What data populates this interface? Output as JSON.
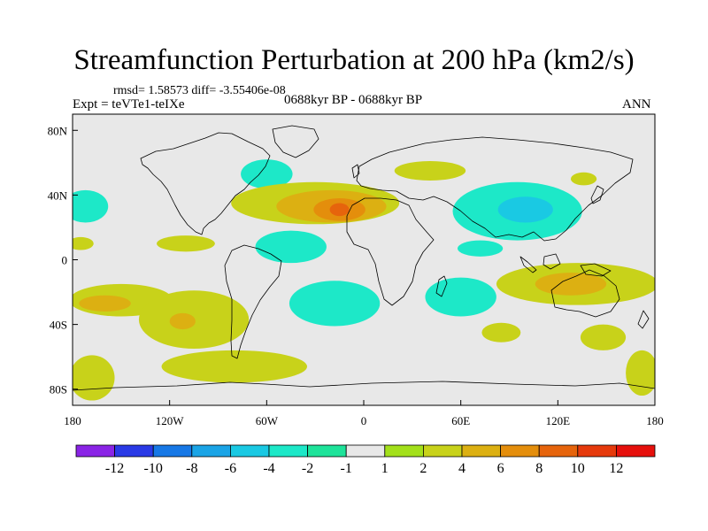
{
  "chart_data": {
    "type": "heatmap",
    "title": "Streamfunction Perturbation at 200 hPa (km2/s)",
    "stats": "rmsd= 1.58573  diff= -3.55406e-08",
    "experiment": "Expt = teVTe1-teIXe",
    "period": "0688kyr BP - 0688kyr BP",
    "season": "ANN",
    "x_range": [
      -180,
      180
    ],
    "y_range": [
      -90,
      90
    ],
    "x_ticks": [
      {
        "value": -180,
        "label": "180"
      },
      {
        "value": -120,
        "label": "120W"
      },
      {
        "value": -60,
        "label": "60W"
      },
      {
        "value": 0,
        "label": "0"
      },
      {
        "value": 60,
        "label": "60E"
      },
      {
        "value": 120,
        "label": "120E"
      },
      {
        "value": 180,
        "label": "180"
      }
    ],
    "y_ticks": [
      {
        "value": 80,
        "label": "80N"
      },
      {
        "value": 40,
        "label": "40N"
      },
      {
        "value": 0,
        "label": "0"
      },
      {
        "value": -40,
        "label": "40S"
      },
      {
        "value": -80,
        "label": "80S"
      }
    ],
    "colorbar": {
      "labels": [
        "-12",
        "-10",
        "-8",
        "-6",
        "-4",
        "-2",
        "-1",
        "1",
        "2",
        "4",
        "6",
        "8",
        "10",
        "12"
      ],
      "colors": [
        "#8a24e6",
        "#2a3ae6",
        "#1778e6",
        "#1aa4e6",
        "#1ac9e3",
        "#1de8c8",
        "#1ee39a",
        "#e8e8e8",
        "#a3e01a",
        "#c8d21a",
        "#dcb012",
        "#e48e0c",
        "#e6640c",
        "#e63a0c",
        "#e6100c"
      ]
    },
    "contour_regions": [
      {
        "level": 2,
        "lon": 41,
        "lat": 55,
        "rlon": 22,
        "rlat": 6
      },
      {
        "level": -2,
        "lon": -172,
        "lat": 33,
        "rlon": 14,
        "rlat": 10
      },
      {
        "level": -2,
        "lon": -60,
        "lat": 53,
        "rlon": 16,
        "rlat": 9
      },
      {
        "level": 2,
        "lon": -30,
        "lat": 35,
        "rlon": 52,
        "rlat": 13
      },
      {
        "level": 4,
        "lon": -20,
        "lat": 33,
        "rlon": 34,
        "rlat": 10
      },
      {
        "level": 6,
        "lon": -15,
        "lat": 31,
        "rlon": 16,
        "rlat": 7
      },
      {
        "level": 8,
        "lon": -15,
        "lat": 31,
        "rlon": 6,
        "rlat": 4
      },
      {
        "level": -2,
        "lon": 95,
        "lat": 30,
        "rlon": 40,
        "rlat": 18
      },
      {
        "level": -4,
        "lon": 100,
        "lat": 31,
        "rlon": 17,
        "rlat": 8
      },
      {
        "level": -2,
        "lon": -45,
        "lat": 8,
        "rlon": 22,
        "rlat": 10
      },
      {
        "level": -2,
        "lon": 72,
        "lat": 7,
        "rlon": 14,
        "rlat": 5
      },
      {
        "level": 2,
        "lon": 132,
        "lat": -15,
        "rlon": 50,
        "rlat": 13
      },
      {
        "level": 4,
        "lon": 128,
        "lat": -15,
        "rlon": 22,
        "rlat": 7
      },
      {
        "level": 2,
        "lon": -150,
        "lat": -25,
        "rlon": 32,
        "rlat": 10
      },
      {
        "level": 4,
        "lon": -160,
        "lat": -27,
        "rlon": 16,
        "rlat": 5
      },
      {
        "level": -2,
        "lon": -18,
        "lat": -27,
        "rlon": 28,
        "rlat": 14
      },
      {
        "level": -2,
        "lon": 60,
        "lat": -23,
        "rlon": 22,
        "rlat": 12
      },
      {
        "level": 2,
        "lon": -105,
        "lat": -37,
        "rlon": 34,
        "rlat": 18
      },
      {
        "level": 4,
        "lon": -112,
        "lat": -38,
        "rlon": 8,
        "rlat": 5
      },
      {
        "level": 2,
        "lon": 148,
        "lat": -48,
        "rlon": 14,
        "rlat": 8
      },
      {
        "level": 2,
        "lon": -168,
        "lat": -73,
        "rlon": 14,
        "rlat": 14
      },
      {
        "level": 2,
        "lon": 172,
        "lat": -70,
        "rlon": 10,
        "rlat": 14
      },
      {
        "level": 2,
        "lon": -80,
        "lat": -66,
        "rlon": 45,
        "rlat": 10
      },
      {
        "level": 2,
        "lon": 85,
        "lat": -45,
        "rlon": 12,
        "rlat": 6
      },
      {
        "level": 2,
        "lon": -175,
        "lat": 10,
        "rlon": 8,
        "rlat": 4
      },
      {
        "level": 2,
        "lon": -110,
        "lat": 10,
        "rlon": 18,
        "rlat": 5
      },
      {
        "level": 2,
        "lon": 136,
        "lat": 50,
        "rlon": 8,
        "rlat": 4
      }
    ]
  }
}
